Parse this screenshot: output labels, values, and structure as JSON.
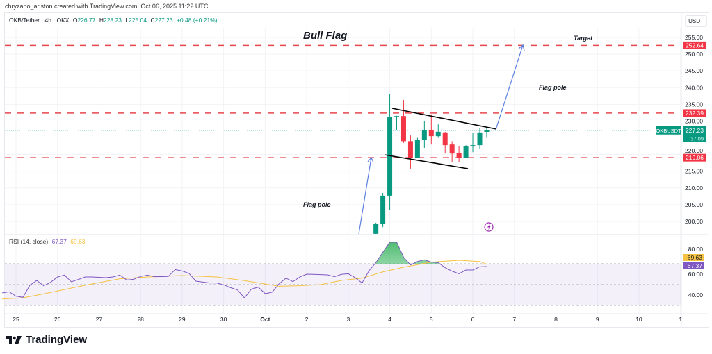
{
  "credit": "chryzano_ariston created with TradingView.com, Oct 06, 2025 11:22 UTC",
  "header": {
    "symbol": "OKB/Tether · 4h · OKX",
    "o_label": "O",
    "o": "226.77",
    "h_label": "H",
    "h": "228.23",
    "l_label": "L",
    "l": "225.04",
    "c_label": "C",
    "c": "227.23",
    "change": "+0.48 (+0.21%)"
  },
  "price_scale": {
    "currency": "USDT"
  },
  "rsi_header": {
    "label": "RSI (14, close)",
    "rsi": "67.37",
    "ma": "69.63"
  },
  "brand": "TradingView",
  "colors": {
    "up": "#089981",
    "down": "#f23645",
    "level": "#e8474f",
    "arrow": "#5b7fe0",
    "rsi": "#7e57c2",
    "rsi_ma": "#f5c242",
    "flag_lines": "#000000"
  },
  "chart_data": [
    {
      "type": "candlestick",
      "symbol": "OKBUSDT",
      "interval": "4h",
      "ylim": [
        196,
        257
      ],
      "yticks": [
        "255.00",
        "250.00",
        "245.00",
        "240.00",
        "235.00",
        "230.00",
        "220.00",
        "215.00",
        "210.00",
        "205.00",
        "200.00"
      ],
      "ytick_values": [
        255,
        250,
        245,
        240,
        235,
        230,
        220,
        215,
        210,
        205,
        200
      ],
      "xticks": [
        "25",
        "26",
        "27",
        "28",
        "29",
        "30",
        "Oct",
        "2",
        "3",
        "4",
        "5",
        "6",
        "7",
        "8",
        "9",
        "10",
        "1"
      ],
      "grid": true,
      "candles": [
        {
          "t": "Oct 3 16:00",
          "o": 196.3,
          "h": 199.6,
          "l": 195.0,
          "c": 199.2
        },
        {
          "t": "Oct 3 20:00",
          "o": 199.2,
          "h": 208.5,
          "l": 198.3,
          "c": 207.7
        },
        {
          "t": "Oct 4 00:00",
          "o": 207.7,
          "h": 238.0,
          "l": 203.5,
          "c": 231.3
        },
        {
          "t": "Oct 4 04:00",
          "o": 231.2,
          "h": 231.6,
          "l": 227.4,
          "c": 231.5
        },
        {
          "t": "Oct 4 08:00",
          "o": 231.5,
          "h": 236.3,
          "l": 223.5,
          "c": 224.0
        },
        {
          "t": "Oct 4 12:00",
          "o": 224.0,
          "h": 225.7,
          "l": 215.8,
          "c": 218.9
        },
        {
          "t": "Oct 4 16:00",
          "o": 218.9,
          "h": 225.0,
          "l": 218.9,
          "c": 224.3
        },
        {
          "t": "Oct 4 20:00",
          "o": 224.3,
          "h": 229.9,
          "l": 222.0,
          "c": 227.4
        },
        {
          "t": "Oct 5 00:00",
          "o": 227.4,
          "h": 232.0,
          "l": 223.0,
          "c": 225.5
        },
        {
          "t": "Oct 5 04:00",
          "o": 225.5,
          "h": 229.0,
          "l": 225.0,
          "c": 226.8
        },
        {
          "t": "Oct 5 08:00",
          "o": 226.6,
          "h": 226.8,
          "l": 220.3,
          "c": 222.8
        },
        {
          "t": "Oct 5 12:00",
          "o": 223.0,
          "h": 224.0,
          "l": 217.8,
          "c": 220.3
        },
        {
          "t": "Oct 5 16:00",
          "o": 220.5,
          "h": 222.5,
          "l": 217.8,
          "c": 218.9
        },
        {
          "t": "Oct 5 20:00",
          "o": 218.9,
          "h": 222.8,
          "l": 218.9,
          "c": 222.4
        },
        {
          "t": "Oct 6 00:00",
          "o": 222.4,
          "h": 226.4,
          "l": 220.7,
          "c": 222.8
        },
        {
          "t": "Oct 6 04:00",
          "o": 222.8,
          "h": 227.8,
          "l": 221.6,
          "c": 226.6
        },
        {
          "t": "Oct 6 08:00",
          "o": 226.77,
          "h": 228.23,
          "l": 225.04,
          "c": 227.23
        }
      ],
      "levels": [
        {
          "price": 252.64,
          "label": "252.64"
        },
        {
          "price": 232.39,
          "label": "232.39"
        },
        {
          "price": 219.06,
          "label": "219.06"
        }
      ],
      "last_price": {
        "symbol_tag": "OKBUSDT",
        "price": "227.23",
        "countdown": "37:09"
      },
      "annotations": {
        "title": "Bull Flag",
        "target": "Target",
        "flag_pole_upper": "Flag pole",
        "flag_pole_lower": "Flag pole"
      }
    },
    {
      "type": "line",
      "indicator": "RSI (14, close)",
      "ylim": [
        25,
        95
      ],
      "yticks": [
        "80.00",
        "60.00",
        "40.00"
      ],
      "ytick_values": [
        80,
        60,
        40
      ],
      "bands": [
        70,
        50,
        30
      ],
      "last_rsi": "67.37",
      "last_ma": "69.63",
      "rsi": [
        [
          "Sep 24 16:00",
          42
        ],
        [
          "Sep 24 20:00",
          43.1
        ],
        [
          "Sep 25 00:00",
          38.9
        ],
        [
          "Sep 25 04:00",
          37.8
        ],
        [
          "Sep 25 08:00",
          49.3
        ],
        [
          "Sep 25 12:00",
          54
        ],
        [
          "Sep 25 16:00",
          48.9
        ],
        [
          "Sep 25 20:00",
          52.2
        ],
        [
          "Sep 26 00:00",
          57.3
        ],
        [
          "Sep 26 04:00",
          59.1
        ],
        [
          "Sep 26 08:00",
          52.7
        ],
        [
          "Sep 26 12:00",
          54.9
        ],
        [
          "Sep 26 16:00",
          57.3
        ],
        [
          "Sep 26 20:00",
          57.3
        ],
        [
          "Sep 27 00:00",
          57
        ],
        [
          "Sep 27 04:00",
          56.7
        ],
        [
          "Sep 27 08:00",
          57.3
        ],
        [
          "Sep 27 12:00",
          59.1
        ],
        [
          "Sep 27 16:00",
          54.4
        ],
        [
          "Sep 27 20:00",
          55.1
        ],
        [
          "Sep 28 00:00",
          57.8
        ],
        [
          "Sep 28 04:00",
          59.1
        ],
        [
          "Sep 28 08:00",
          57.6
        ],
        [
          "Sep 28 12:00",
          57.7
        ],
        [
          "Sep 28 16:00",
          57.8
        ],
        [
          "Sep 28 20:00",
          64.4
        ],
        [
          "Sep 29 00:00",
          63.1
        ],
        [
          "Sep 29 04:00",
          60.7
        ],
        [
          "Sep 29 08:00",
          53.3
        ],
        [
          "Sep 29 12:00",
          52.4
        ],
        [
          "Sep 29 16:00",
          51.6
        ],
        [
          "Sep 29 20:00",
          51.6
        ],
        [
          "Sep 30 00:00",
          49.8
        ],
        [
          "Sep 30 04:00",
          47.1
        ],
        [
          "Sep 30 08:00",
          44.9
        ],
        [
          "Sep 30 12:00",
          37.3
        ],
        [
          "Sep 30 16:00",
          45.6
        ],
        [
          "Sep 30 20:00",
          47.6
        ],
        [
          "Oct 1 00:00",
          41.3
        ],
        [
          "Oct 1 04:00",
          42.7
        ],
        [
          "Oct 1 08:00",
          50.7
        ],
        [
          "Oct 1 12:00",
          56.2
        ],
        [
          "Oct 1 16:00",
          52.9
        ],
        [
          "Oct 1 20:00",
          57.3
        ],
        [
          "Oct 2 00:00",
          60
        ],
        [
          "Oct 2 04:00",
          59.8
        ],
        [
          "Oct 2 08:00",
          59.6
        ],
        [
          "Oct 2 12:00",
          59.3
        ],
        [
          "Oct 2 16:00",
          57.6
        ],
        [
          "Oct 2 20:00",
          59.8
        ],
        [
          "Oct 3 00:00",
          60.4
        ],
        [
          "Oct 3 04:00",
          56.7
        ],
        [
          "Oct 3 08:00",
          51.6
        ],
        [
          "Oct 3 12:00",
          63.3
        ],
        [
          "Oct 3 16:00",
          71.1
        ],
        [
          "Oct 3 20:00",
          81.1
        ],
        [
          "Oct 4 00:00",
          90.7
        ],
        [
          "Oct 4 04:00",
          90.7
        ],
        [
          "Oct 4 08:00",
          76.2
        ],
        [
          "Oct 4 12:00",
          68.9
        ],
        [
          "Oct 4 16:00",
          72.2
        ],
        [
          "Oct 4 20:00",
          73.8
        ],
        [
          "Oct 5 00:00",
          71.6
        ],
        [
          "Oct 5 04:00",
          71.1
        ],
        [
          "Oct 5 08:00",
          66.2
        ],
        [
          "Oct 5 12:00",
          62.9
        ],
        [
          "Oct 5 16:00",
          60.4
        ],
        [
          "Oct 5 20:00",
          64
        ],
        [
          "Oct 6 00:00",
          64
        ],
        [
          "Oct 6 04:00",
          67.1
        ],
        [
          "Oct 6 08:00",
          67.37
        ]
      ],
      "rsi_ma": [
        [
          "Sep 24 16:00",
          36.2
        ],
        [
          "Sep 25 04:00",
          37.3
        ],
        [
          "Sep 25 16:00",
          41.1
        ],
        [
          "Sep 26 08:00",
          46.7
        ],
        [
          "Sep 26 20:00",
          50.7
        ],
        [
          "Sep 27 12:00",
          55.6
        ],
        [
          "Sep 28 04:00",
          57.3
        ],
        [
          "Sep 29 00:00",
          58.7
        ],
        [
          "Sep 29 20:00",
          57.3
        ],
        [
          "Sep 30 12:00",
          53.8
        ],
        [
          "Oct 1 08:00",
          48.4
        ],
        [
          "Oct 1 20:00",
          48.9
        ],
        [
          "Oct 2 08:00",
          50
        ],
        [
          "Oct 2 20:00",
          54
        ],
        [
          "Oct 3 08:00",
          56.2
        ],
        [
          "Oct 3 20:00",
          62.2
        ],
        [
          "Oct 4 08:00",
          66.7
        ],
        [
          "Oct 5 00:00",
          71.6
        ],
        [
          "Oct 5 16:00",
          73.3
        ],
        [
          "Oct 6 04:00",
          72.2
        ],
        [
          "Oct 6 08:00",
          69.63
        ]
      ]
    }
  ]
}
